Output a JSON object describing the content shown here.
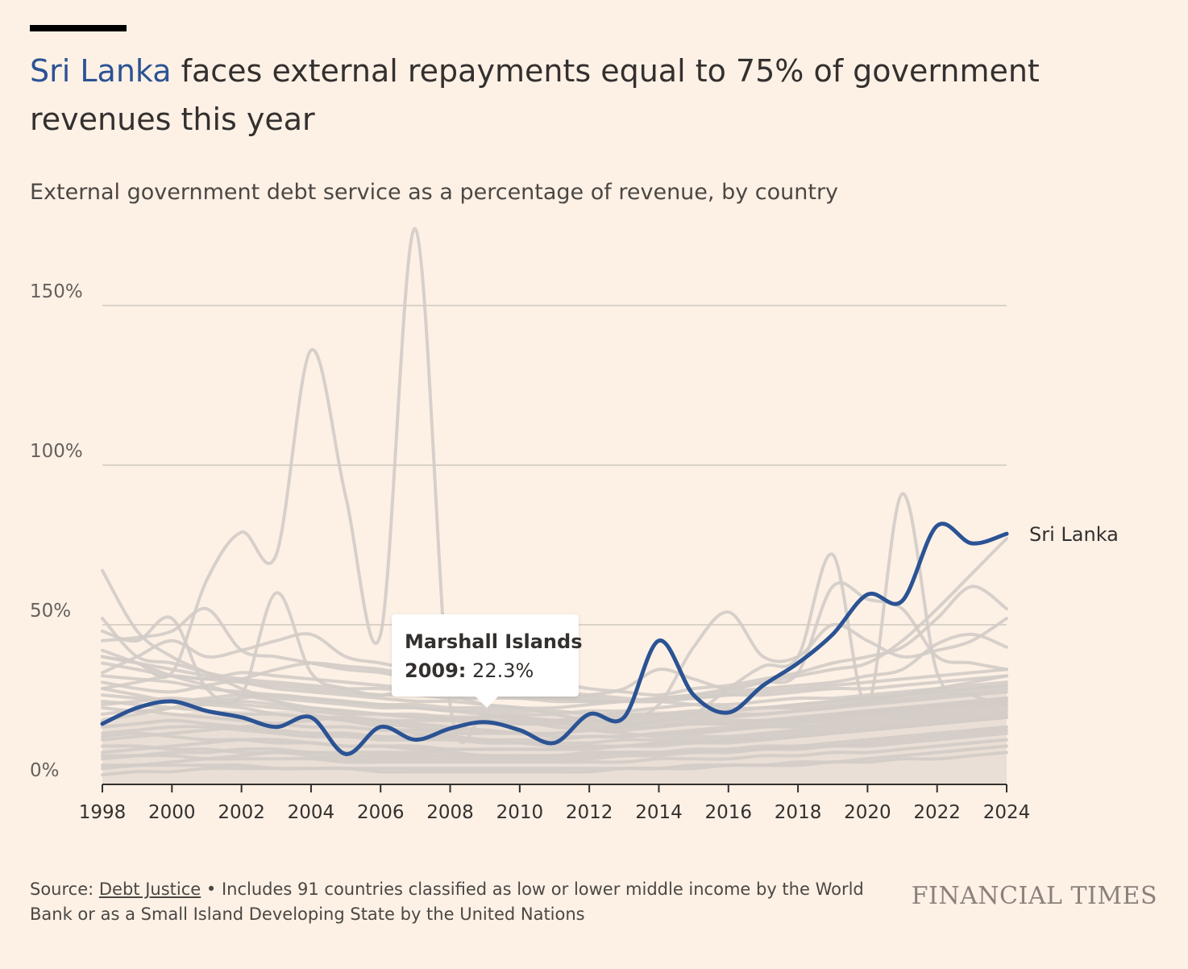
{
  "header": {
    "title_highlight": "Sri Lanka",
    "title_rest": " faces external repayments equal to 75% of government revenues this year",
    "subtitle": "External government debt service as a percentage of revenue, by country"
  },
  "tooltip": {
    "country": "Marshall Islands",
    "year": "2009:",
    "value": "22.3%"
  },
  "footer": {
    "source_label": "Source: ",
    "source_link": "Debt Justice",
    "note": " • Includes 91 countries classified as low or lower middle income by the World Bank or as a Small Island Developing State by the United Nations",
    "brand": "FINANCIAL TIMES"
  },
  "colors": {
    "background": "#fdf1e6",
    "highlight": "#2b5394",
    "other_countries": "#d3ccc6",
    "grid": "#cfc7bf"
  },
  "chart_data": {
    "type": "line",
    "title": "Sri Lanka faces external repayments equal to 75% of government revenues this year",
    "subtitle": "External government debt service as a percentage of revenue, by country",
    "xlabel": "",
    "ylabel": "",
    "xlim": [
      1998,
      2024
    ],
    "ylim": [
      0,
      175
    ],
    "x_ticks": [
      1998,
      2000,
      2002,
      2004,
      2006,
      2008,
      2010,
      2012,
      2014,
      2016,
      2018,
      2020,
      2022,
      2024
    ],
    "x_tick_labels": [
      "1998",
      "2000",
      "2002",
      "2004",
      "2006",
      "2008",
      "2010",
      "2012",
      "2014",
      "2016",
      "2018",
      "2020",
      "2022",
      "2024"
    ],
    "y_ticks": [
      0,
      50,
      100,
      150
    ],
    "y_tick_labels": [
      "0%",
      "50%",
      "100%",
      "150%"
    ],
    "grid": true,
    "highlight_series": {
      "name": "Sri Lanka",
      "x": [
        1998,
        1999,
        2000,
        2001,
        2002,
        2003,
        2004,
        2005,
        2006,
        2007,
        2008,
        2009,
        2010,
        2011,
        2012,
        2013,
        2014,
        2015,
        2016,
        2017,
        2018,
        2019,
        2020,
        2021,
        2022,
        2023,
        2024
      ],
      "values": [
        19,
        24,
        26,
        23,
        21,
        18,
        21,
        9.5,
        18,
        14,
        17.5,
        19.5,
        17,
        13,
        22,
        21,
        45,
        28,
        22.5,
        31,
        38,
        47,
        59.5,
        57.5,
        81,
        75.5,
        78.5
      ]
    },
    "background_series": [
      {
        "values": [
          67,
          48,
          40,
          35,
          30,
          26,
          22,
          20,
          18,
          16,
          15,
          14,
          13,
          12,
          12,
          12,
          13,
          14,
          14,
          15,
          16,
          17,
          18,
          19,
          20,
          21,
          22
        ]
      },
      {
        "values": [
          40,
          38,
          35,
          64,
          79,
          72,
          136,
          90,
          47,
          174,
          25,
          22,
          20,
          18,
          17,
          16,
          15,
          16,
          17,
          18,
          19,
          20,
          21,
          22,
          23,
          24,
          25
        ]
      },
      {
        "values": [
          30,
          28,
          26,
          25,
          24,
          22,
          21,
          20,
          19,
          18,
          17,
          17,
          16,
          16,
          17,
          18,
          20,
          22,
          30,
          37,
          40,
          72,
          25,
          91,
          35,
          28,
          25
        ]
      },
      {
        "values": [
          48,
          45,
          52,
          30,
          28,
          60,
          35,
          30,
          28,
          30,
          28,
          25,
          24,
          22,
          20,
          20,
          25,
          43,
          54,
          40,
          40,
          50,
          45,
          40,
          42,
          45,
          52
        ]
      },
      {
        "values": [
          45,
          46,
          48,
          55,
          42,
          40,
          38,
          36,
          35,
          33,
          32,
          30,
          28,
          27,
          28,
          30,
          36,
          33,
          30,
          32,
          35,
          62,
          58,
          55,
          40,
          38,
          36
        ]
      },
      {
        "values": [
          40,
          38,
          36,
          34,
          32,
          30,
          29,
          28,
          27,
          26,
          26,
          25,
          24,
          24,
          25,
          26,
          27,
          28,
          30,
          32,
          34,
          36,
          38,
          45,
          55,
          66,
          77
        ]
      },
      {
        "values": [
          35,
          40,
          45,
          40,
          42,
          45,
          47,
          40,
          38,
          36,
          35,
          34,
          33,
          32,
          30,
          29,
          28,
          30,
          31,
          33,
          35,
          38,
          40,
          43,
          52,
          62,
          55
        ]
      },
      {
        "values": [
          52,
          40,
          38,
          35,
          33,
          32,
          31,
          30,
          30,
          29,
          28,
          28,
          27,
          27,
          26,
          26,
          27,
          28,
          29,
          30,
          31,
          32,
          34,
          36,
          44,
          47,
          43
        ]
      },
      {
        "values": [
          38,
          36,
          34,
          33,
          32,
          31,
          30,
          29,
          28,
          28,
          27,
          27,
          27,
          26,
          26,
          26,
          27,
          27,
          28,
          29,
          30,
          31,
          32,
          33,
          34,
          35,
          36
        ]
      },
      {
        "values": [
          30,
          32,
          34,
          33,
          35,
          34,
          33,
          32,
          31,
          30,
          29,
          28,
          28,
          27,
          27,
          26,
          26,
          27,
          28,
          28,
          29,
          30,
          30,
          31,
          32,
          33,
          34
        ]
      },
      {
        "values": [
          28,
          27,
          26,
          27,
          28,
          27,
          26,
          25,
          24,
          24,
          23,
          23,
          22,
          22,
          23,
          23,
          24,
          25,
          25,
          26,
          27,
          27,
          28,
          29,
          30,
          31,
          32
        ]
      },
      {
        "values": [
          25,
          26,
          27,
          26,
          25,
          24,
          23,
          22,
          22,
          21,
          21,
          20,
          20,
          20,
          21,
          21,
          22,
          22,
          23,
          24,
          24,
          25,
          26,
          27,
          28,
          29,
          30
        ]
      },
      {
        "values": [
          22,
          23,
          22,
          21,
          20,
          19,
          18,
          18,
          17,
          17,
          16,
          16,
          16,
          16,
          17,
          17,
          18,
          19,
          19,
          20,
          21,
          22,
          23,
          24,
          25,
          26,
          27
        ]
      },
      {
        "values": [
          18,
          19,
          20,
          19,
          18,
          17,
          16,
          16,
          15,
          15,
          15,
          14,
          14,
          14,
          15,
          15,
          16,
          16,
          17,
          18,
          18,
          19,
          20,
          21,
          22,
          23,
          24
        ]
      },
      {
        "values": [
          15,
          16,
          15,
          14,
          14,
          13,
          13,
          12,
          12,
          12,
          11,
          11,
          11,
          11,
          12,
          12,
          13,
          13,
          14,
          14,
          15,
          16,
          17,
          18,
          19,
          20,
          21
        ]
      },
      {
        "values": [
          12,
          12,
          11,
          11,
          10,
          10,
          10,
          9,
          9,
          9,
          9,
          9,
          9,
          9,
          9,
          10,
          10,
          10,
          11,
          11,
          12,
          12,
          13,
          14,
          15,
          16,
          17
        ]
      },
      {
        "values": [
          9,
          9,
          9,
          8,
          8,
          8,
          8,
          7,
          7,
          7,
          7,
          7,
          7,
          7,
          7,
          7,
          8,
          8,
          8,
          9,
          9,
          10,
          10,
          11,
          12,
          13,
          14
        ]
      },
      {
        "values": [
          6,
          6,
          6,
          6,
          6,
          5,
          5,
          5,
          5,
          5,
          5,
          5,
          5,
          5,
          5,
          5,
          5,
          6,
          6,
          6,
          6,
          7,
          7,
          8,
          8,
          9,
          10
        ]
      },
      {
        "values": [
          32,
          30,
          29,
          31,
          33,
          36,
          38,
          37,
          36,
          34,
          33,
          31,
          30,
          29,
          28,
          27,
          26,
          25,
          24,
          24,
          25,
          26,
          27,
          28,
          29,
          30,
          31
        ]
      },
      {
        "values": [
          20,
          22,
          24,
          26,
          27,
          28,
          27,
          26,
          25,
          24,
          23,
          22,
          21,
          20,
          20,
          19,
          19,
          19,
          20,
          20,
          21,
          22,
          23,
          24,
          25,
          26,
          27
        ]
      },
      {
        "values": [
          26,
          25,
          24,
          23,
          22,
          22,
          21,
          21,
          20,
          20,
          20,
          19,
          19,
          19,
          19,
          19,
          20,
          20,
          21,
          22,
          23,
          24,
          26,
          28,
          30,
          32,
          34
        ]
      },
      {
        "values": [
          42,
          38,
          34,
          31,
          28,
          26,
          24,
          23,
          22,
          21,
          20,
          20,
          19,
          19,
          18,
          18,
          18,
          19,
          19,
          20,
          20,
          21,
          22,
          23,
          24,
          25,
          26
        ]
      },
      {
        "values": [
          14,
          15,
          16,
          17,
          18,
          19,
          20,
          21,
          20,
          19,
          18,
          17,
          16,
          15,
          15,
          15,
          16,
          17,
          18,
          19,
          20,
          21,
          22,
          23,
          24,
          25,
          26
        ]
      },
      {
        "values": [
          10,
          11,
          12,
          13,
          14,
          14,
          13,
          12,
          12,
          11,
          11,
          11,
          11,
          11,
          11,
          12,
          12,
          13,
          13,
          14,
          15,
          16,
          17,
          18,
          19,
          20,
          21
        ]
      },
      {
        "values": [
          5,
          6,
          7,
          8,
          9,
          10,
          9,
          8,
          8,
          8,
          8,
          8,
          8,
          8,
          8,
          9,
          9,
          10,
          10,
          11,
          11,
          12,
          12,
          13,
          14,
          15,
          16
        ]
      },
      {
        "values": [
          34,
          33,
          32,
          30,
          29,
          28,
          27,
          26,
          25,
          25,
          24,
          24,
          23,
          23,
          22,
          22,
          22,
          23,
          23,
          24,
          25,
          26,
          27,
          28,
          29,
          30,
          31
        ]
      },
      {
        "values": [
          24,
          23,
          24,
          25,
          26,
          25,
          24,
          23,
          22,
          22,
          21,
          21,
          21,
          20,
          20,
          20,
          21,
          21,
          22,
          22,
          23,
          24,
          25,
          26,
          27,
          28,
          29
        ]
      },
      {
        "values": [
          16,
          17,
          18,
          18,
          17,
          16,
          15,
          15,
          14,
          14,
          14,
          13,
          13,
          13,
          13,
          14,
          14,
          15,
          15,
          16,
          17,
          18,
          19,
          20,
          21,
          22,
          23
        ]
      },
      {
        "values": [
          8,
          9,
          10,
          10,
          11,
          11,
          10,
          10,
          10,
          10,
          10,
          9,
          9,
          9,
          10,
          10,
          10,
          11,
          11,
          12,
          12,
          13,
          14,
          15,
          16,
          17,
          18
        ]
      },
      {
        "values": [
          3,
          4,
          4,
          5,
          5,
          5,
          5,
          5,
          4,
          4,
          4,
          4,
          4,
          4,
          4,
          5,
          5,
          5,
          6,
          6,
          7,
          7,
          8,
          9,
          10,
          11,
          12
        ]
      }
    ]
  }
}
